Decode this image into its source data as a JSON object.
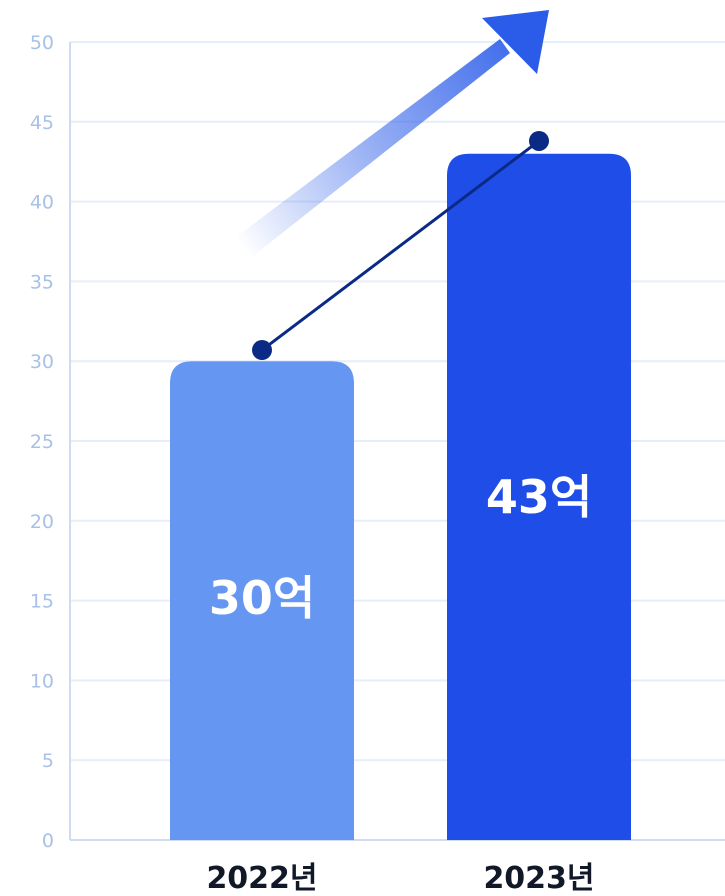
{
  "chart_data": {
    "type": "bar",
    "title": "",
    "xlabel": "",
    "ylabel": "",
    "ylim": [
      0,
      50
    ],
    "yticks": [
      0,
      5,
      10,
      15,
      20,
      25,
      30,
      35,
      40,
      45,
      50
    ],
    "grid": true,
    "legend": "none",
    "categories": [
      "2022년",
      "2023년"
    ],
    "values": [
      30,
      43
    ],
    "data_labels": [
      "30억",
      "43억"
    ],
    "trend_line_values": [
      30.7,
      43.8
    ],
    "colors": {
      "bars": [
        "#6596f2",
        "#1f4de8"
      ],
      "trend_line": "#0a2a86",
      "arrow": "#2a5ce9",
      "grid": "#e6eef9",
      "axis": "#cfdcf0",
      "tick_text": "#a8c1e6",
      "category_text": "#111827"
    },
    "decoration": "growth-arrow"
  }
}
